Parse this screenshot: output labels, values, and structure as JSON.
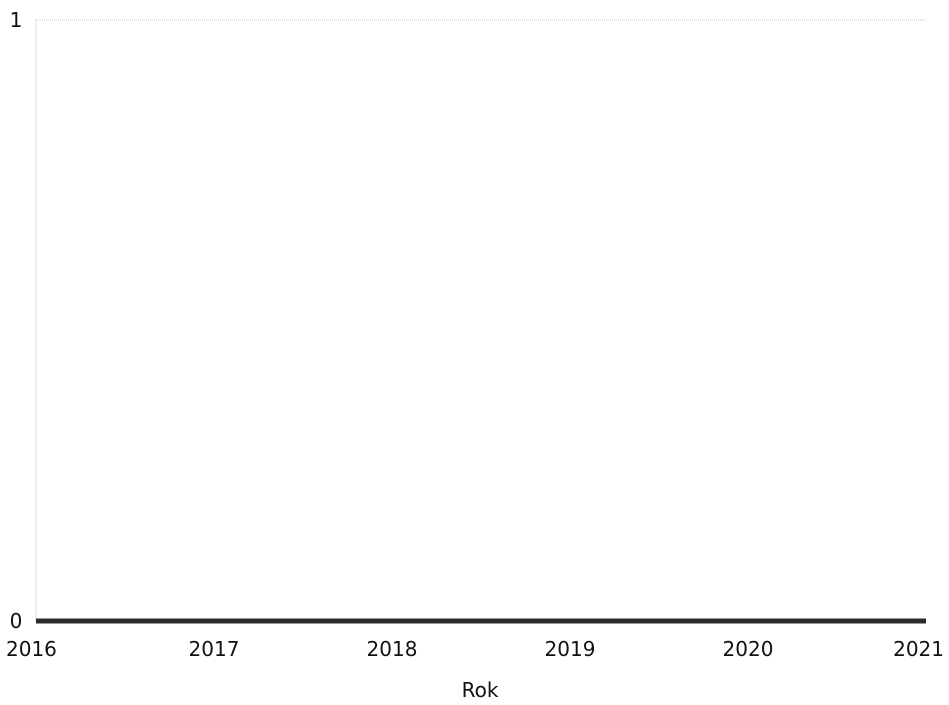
{
  "chart_data": {
    "type": "line",
    "title": "",
    "xlabel": "Rok",
    "ylabel": "",
    "xlim": [
      2016,
      2021
    ],
    "ylim": [
      0,
      1
    ],
    "x_ticks": [
      "2016",
      "2017",
      "2018",
      "2019",
      "2020",
      "2021"
    ],
    "y_ticks": [
      "0",
      "1"
    ],
    "grid": false,
    "series": [
      {
        "x": [
          2016,
          2017,
          2018,
          2019,
          2020,
          2021
        ],
        "values": [
          0,
          0,
          0,
          0,
          0,
          0
        ],
        "color": "#2b2b2b"
      }
    ]
  }
}
